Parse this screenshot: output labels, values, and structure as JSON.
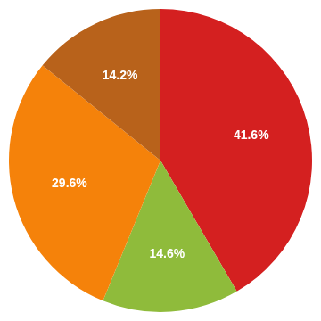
{
  "chart_data": {
    "type": "pie",
    "values": [
      41.6,
      14.6,
      29.6,
      14.2
    ],
    "value_labels": [
      "41.6%",
      "14.6%",
      "29.6%",
      "14.2%"
    ],
    "colors": [
      "#d42020",
      "#8fbb3b",
      "#f5820a",
      "#b8621b"
    ],
    "data_labels": true
  }
}
